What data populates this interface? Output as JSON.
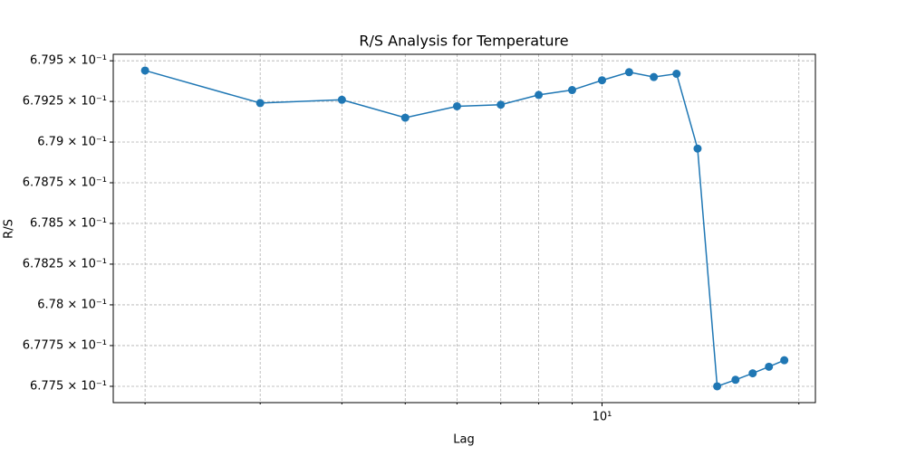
{
  "chart_data": {
    "type": "line",
    "title": "R/S Analysis for Temperature",
    "xlabel": "Lag",
    "ylabel": "R/S",
    "xscale": "log",
    "yscale": "log",
    "grid": true,
    "x": [
      2,
      3,
      4,
      5,
      6,
      7,
      8,
      9,
      10,
      11,
      12,
      13,
      14,
      15,
      16,
      17,
      18,
      19
    ],
    "series": [
      {
        "color": "#1f77b4",
        "values": [
          0.67944,
          0.67924,
          0.67926,
          0.67915,
          0.67922,
          0.67923,
          0.67929,
          0.67932,
          0.67938,
          0.67943,
          0.6794,
          0.67942,
          0.67896,
          0.6775,
          0.67754,
          0.67758,
          0.67762,
          0.67766
        ]
      }
    ],
    "xlim": [
      1.788,
      21.2
    ],
    "xticks": [
      {
        "value": 10,
        "label": "10¹"
      }
    ],
    "xminorticks": [
      2,
      3,
      4,
      5,
      6,
      7,
      8,
      9,
      20
    ],
    "ylim": [
      0.6774,
      0.67954
    ],
    "yticks": [
      {
        "value": 0.6795,
        "label": "6.795 × 10⁻¹"
      },
      {
        "value": 0.67925,
        "label": "6.7925 × 10⁻¹"
      },
      {
        "value": 0.679,
        "label": "6.79 × 10⁻¹"
      },
      {
        "value": 0.67875,
        "label": "6.7875 × 10⁻¹"
      },
      {
        "value": 0.6785,
        "label": "6.785 × 10⁻¹"
      },
      {
        "value": 0.67825,
        "label": "6.7825 × 10⁻¹"
      },
      {
        "value": 0.678,
        "label": "6.78 × 10⁻¹"
      },
      {
        "value": 0.67775,
        "label": "6.7775 × 10⁻¹"
      },
      {
        "value": 0.6775,
        "label": "6.775 × 10⁻¹"
      }
    ]
  }
}
